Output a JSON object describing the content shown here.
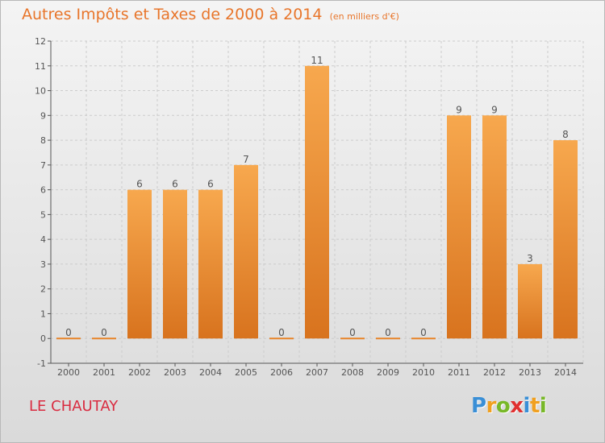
{
  "title": {
    "main": "Autres Impôts et Taxes de 2000 à 2014",
    "unit": "(en milliers d'€)"
  },
  "commune": "LE CHAUTAY",
  "logo": {
    "text": "Proxiti",
    "letters": [
      {
        "ch": "P",
        "color": "#3a8fd6"
      },
      {
        "ch": "r",
        "color": "#f0a020"
      },
      {
        "ch": "o",
        "color": "#78b828"
      },
      {
        "ch": "x",
        "color": "#e03030"
      },
      {
        "ch": "i",
        "color": "#3a8fd6"
      },
      {
        "ch": "t",
        "color": "#f0a020"
      },
      {
        "ch": "i",
        "color": "#78b828"
      }
    ]
  },
  "colors": {
    "bar_light": "#f5a24a",
    "bar_dark": "#e8852a",
    "axis": "#555555",
    "grid": "#cccccc",
    "title": "#e8752a",
    "commune": "#d92b40"
  },
  "chart_data": {
    "type": "bar",
    "categories": [
      "2000",
      "2001",
      "2002",
      "2003",
      "2004",
      "2005",
      "2006",
      "2007",
      "2008",
      "2009",
      "2010",
      "2011",
      "2012",
      "2013",
      "2014"
    ],
    "values": [
      0,
      0,
      6,
      6,
      6,
      7,
      0,
      11,
      0,
      0,
      0,
      9,
      9,
      3,
      8
    ],
    "data_labels": [
      "0",
      "0",
      "6",
      "6",
      "6",
      "7",
      "0",
      "11",
      "0",
      "0",
      "0",
      "9",
      "9",
      "3",
      "8"
    ],
    "ylim": [
      -1,
      12
    ],
    "yticks": [
      -1,
      0,
      1,
      2,
      3,
      4,
      5,
      6,
      7,
      8,
      9,
      10,
      11,
      12
    ],
    "grid": true,
    "xlabel": "",
    "ylabel": ""
  }
}
